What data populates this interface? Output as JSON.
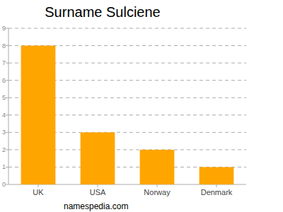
{
  "chart_data": {
    "type": "bar",
    "title": "Surname Sulciene",
    "categories": [
      "UK",
      "USA",
      "Norway",
      "Denmark"
    ],
    "values": [
      8,
      3,
      2,
      1
    ],
    "color": "#ffa500",
    "ylim": [
      0,
      9
    ],
    "yticks": [
      0,
      1,
      2,
      3,
      4,
      5,
      6,
      7,
      8,
      9
    ],
    "grid": true,
    "source": "namespedia.com"
  }
}
